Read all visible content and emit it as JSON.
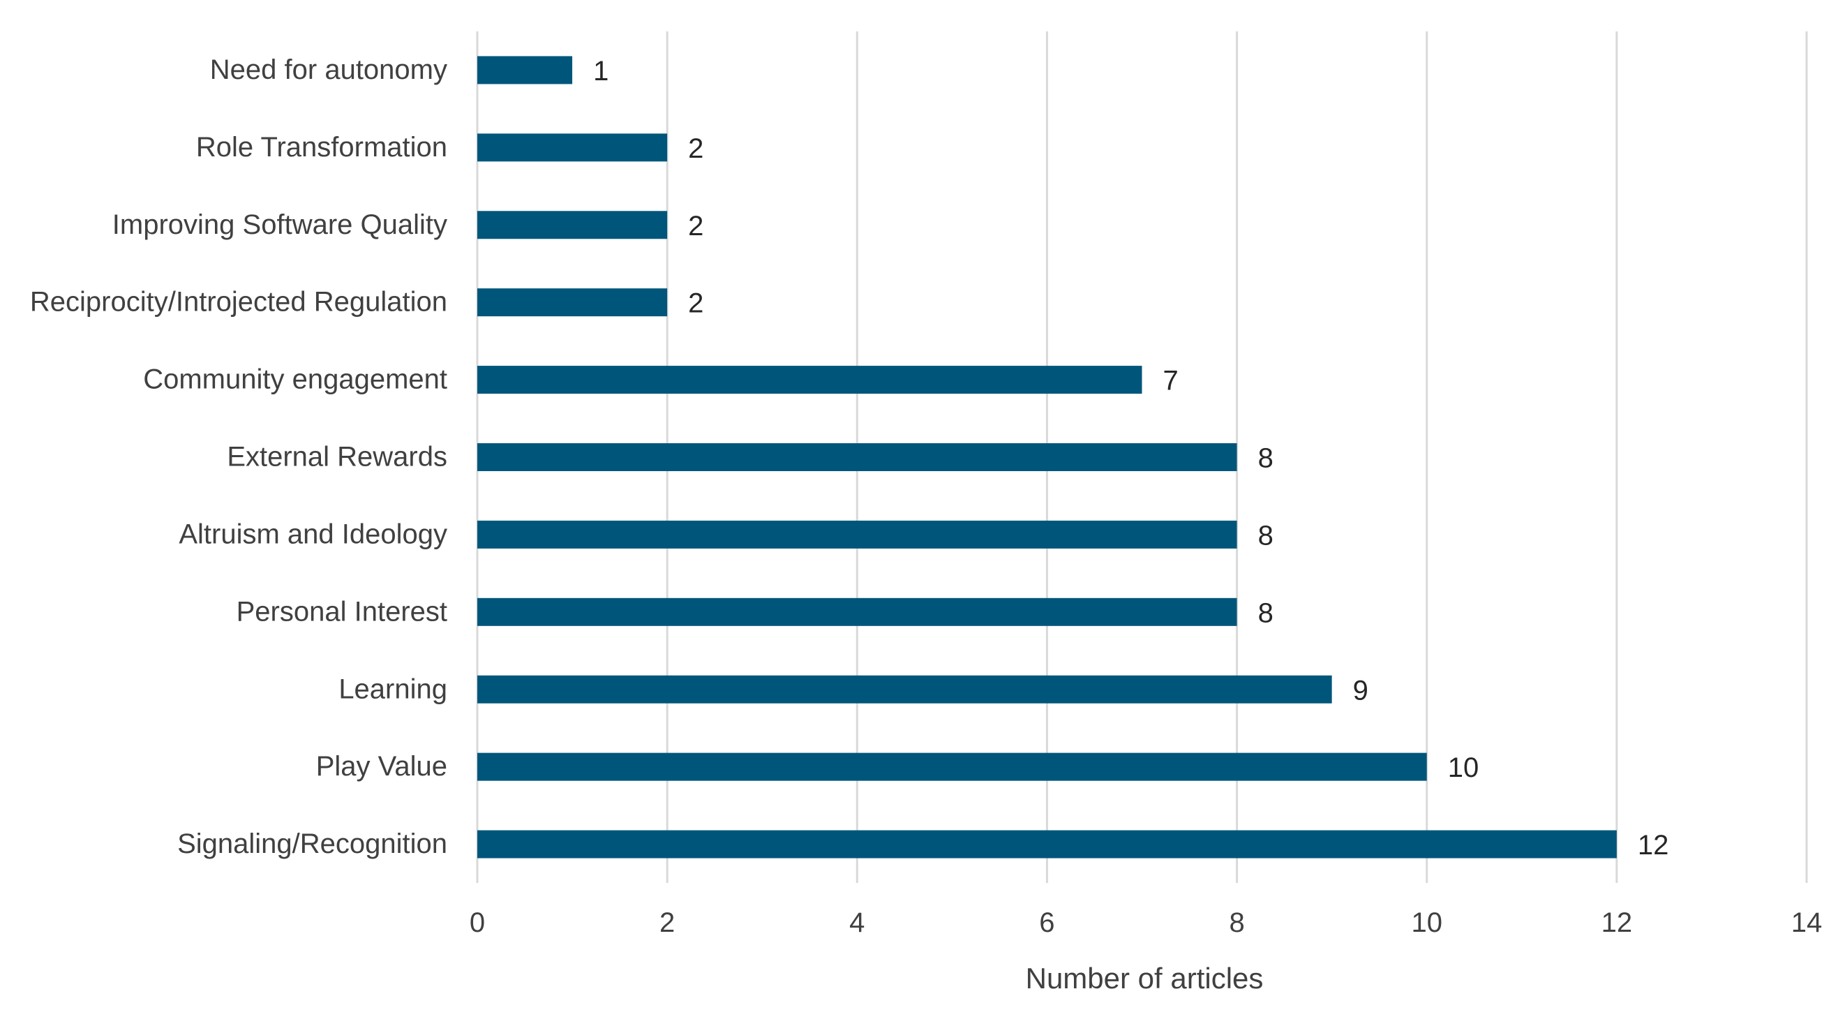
{
  "chart_data": {
    "type": "bar",
    "orientation": "horizontal",
    "categories": [
      "Need for autonomy",
      "Role Transformation",
      "Improving Software Quality",
      "Reciprocity/Introjected Regulation",
      "Community engagement",
      "External Rewards",
      "Altruism and Ideology",
      "Personal Interest",
      "Learning",
      "Play Value",
      "Signaling/Recognition"
    ],
    "values": [
      1,
      2,
      2,
      2,
      7,
      8,
      8,
      8,
      9,
      10,
      12
    ],
    "title": "",
    "xlabel": "Number of articles",
    "ylabel": "",
    "xlim": [
      0,
      14
    ],
    "xticks": [
      0,
      2,
      4,
      6,
      8,
      10,
      12,
      14
    ],
    "grid": "vertical",
    "data_labels": true,
    "legend": "none",
    "bar_color": "#00567A",
    "gridline_color": "#D9D9D9"
  }
}
